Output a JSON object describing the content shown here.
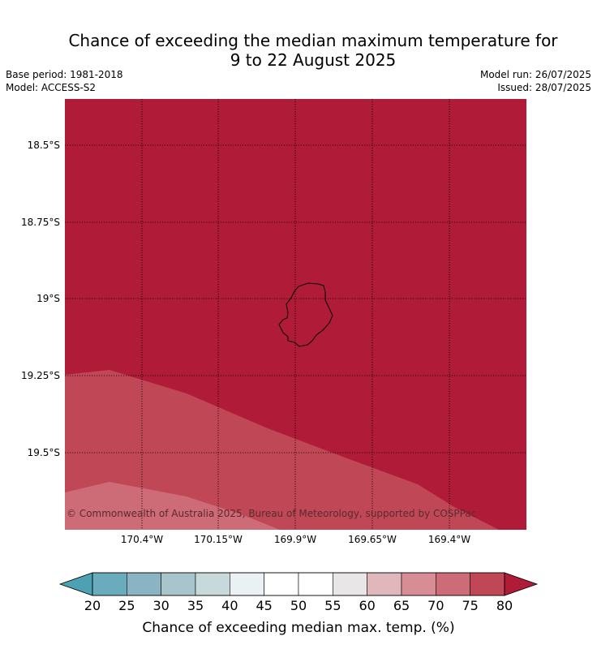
{
  "title": {
    "line1": "Chance of exceeding the median maximum temperature for",
    "line2": "9 to 22 August 2025"
  },
  "meta": {
    "base_period": "Base period: 1981-2018",
    "model": "Model: ACCESS-S2",
    "model_run": "Model run: 26/07/2025",
    "issued": "Issued: 28/07/2025"
  },
  "map": {
    "lat_labels": [
      "18.5°S",
      "18.75°S",
      "19°S",
      "19.25°S",
      "19.5°S"
    ],
    "lon_labels": [
      "170.4°W",
      "170.15°W",
      "169.9°W",
      "169.65°W",
      "169.4°W"
    ],
    "copyright": "© Commonwealth of Australia 2025, Bureau of Meteorology, supported by COSPPac",
    "land_name": "",
    "zone_colors": {
      "above_80": "#b01c38",
      "75_80": "#c04856",
      "70_75": "#cd6b77"
    }
  },
  "colorbar": {
    "ticks": [
      "20",
      "25",
      "30",
      "35",
      "40",
      "45",
      "50",
      "55",
      "60",
      "65",
      "70",
      "75",
      "80"
    ],
    "under_color": "#4ea1b2",
    "over_color": "#b01c38",
    "bin_colors": [
      "#6aabbd",
      "#8ab4c1",
      "#a7c5ca",
      "#c8d9dc",
      "#e9f1f2",
      "#ffffff",
      "#ffffff",
      "#e8e6e6",
      "#e0b7bb",
      "#d78c96",
      "#cd6b77",
      "#c04856"
    ],
    "label": "Chance of exceeding median max. temp. (%)"
  }
}
